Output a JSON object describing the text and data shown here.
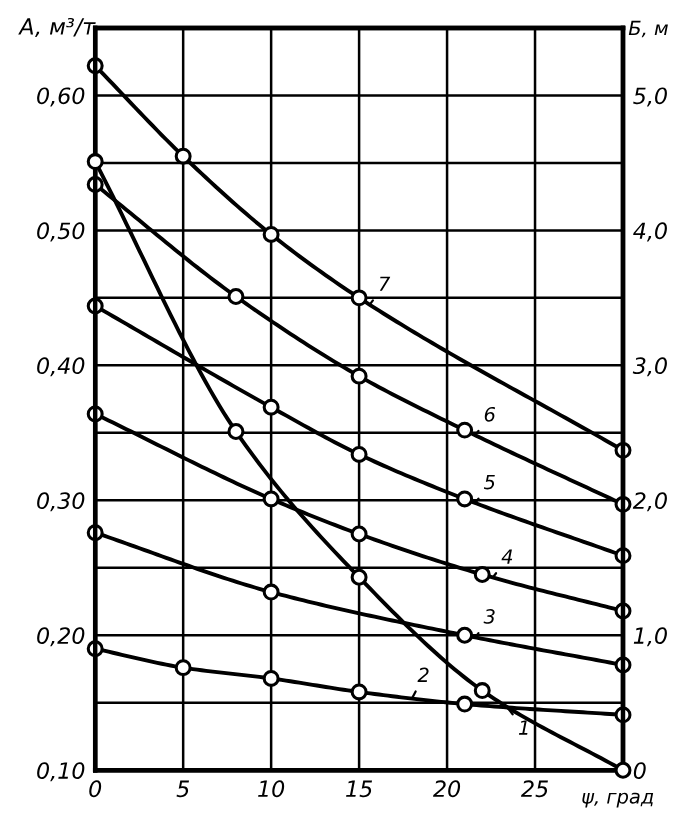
{
  "chart_data": {
    "type": "line",
    "xlabel": "ψ, град",
    "ylabel": "A, м³/т",
    "y2label": "Б, м",
    "xlim": [
      0,
      30
    ],
    "xticks": [
      0,
      5,
      10,
      15,
      20,
      25,
      {
        "value": 30,
        "label": null
      }
    ],
    "ylim": [
      0.1,
      0.65
    ],
    "yticks": [
      {
        "value": 0.1,
        "label": "0,10"
      },
      {
        "value": 0.15,
        "label": null
      },
      {
        "value": 0.2,
        "label": "0,20"
      },
      {
        "value": 0.25,
        "label": null
      },
      {
        "value": 0.3,
        "label": "0,30"
      },
      {
        "value": 0.35,
        "label": null
      },
      {
        "value": 0.4,
        "label": "0,40"
      },
      {
        "value": 0.45,
        "label": null
      },
      {
        "value": 0.5,
        "label": "0,50"
      },
      {
        "value": 0.55,
        "label": null
      },
      {
        "value": 0.6,
        "label": "0,60"
      }
    ],
    "y2lim": [
      0,
      5.5
    ],
    "y2ticks": [
      0,
      {
        "value": 1.0,
        "label": "1,0"
      },
      {
        "value": 2.0,
        "label": "2,0"
      },
      {
        "value": 3.0,
        "label": "3,0"
      },
      {
        "value": 4.0,
        "label": "4,0"
      },
      {
        "value": 5.0,
        "label": "5,0"
      }
    ],
    "grid": true,
    "marker": "circle",
    "line_style": "solid",
    "series": [
      {
        "name": "1",
        "color": "#000000",
        "axis": "y2",
        "x": [
          0,
          8,
          15,
          22,
          30
        ],
        "values": [
          4.51,
          2.51,
          1.43,
          0.59,
          0
        ]
      },
      {
        "name": "2",
        "color": "#000000",
        "x": [
          0,
          5,
          10,
          15,
          21,
          30
        ],
        "values": [
          0.19,
          0.176,
          0.168,
          0.158,
          0.149,
          0.141
        ]
      },
      {
        "name": "3",
        "color": "#000000",
        "x": [
          0,
          10,
          21,
          30
        ],
        "values": [
          0.276,
          0.232,
          0.2,
          0.178
        ]
      },
      {
        "name": "4",
        "color": "#000000",
        "x": [
          0,
          10,
          15,
          22,
          30
        ],
        "values": [
          0.364,
          0.301,
          0.275,
          0.245,
          0.218
        ]
      },
      {
        "name": "5",
        "color": "#000000",
        "x": [
          0,
          10,
          15,
          21,
          30
        ],
        "values": [
          0.444,
          0.369,
          0.334,
          0.301,
          0.259
        ]
      },
      {
        "name": "6",
        "color": "#000000",
        "x": [
          0,
          8,
          15,
          21,
          30
        ],
        "values": [
          0.534,
          0.451,
          0.392,
          0.352,
          0.297
        ]
      },
      {
        "name": "7",
        "color": "#000000",
        "x": [
          0,
          5,
          10,
          15,
          30
        ],
        "values": [
          0.622,
          0.555,
          0.497,
          0.45,
          0.337
        ]
      }
    ]
  }
}
